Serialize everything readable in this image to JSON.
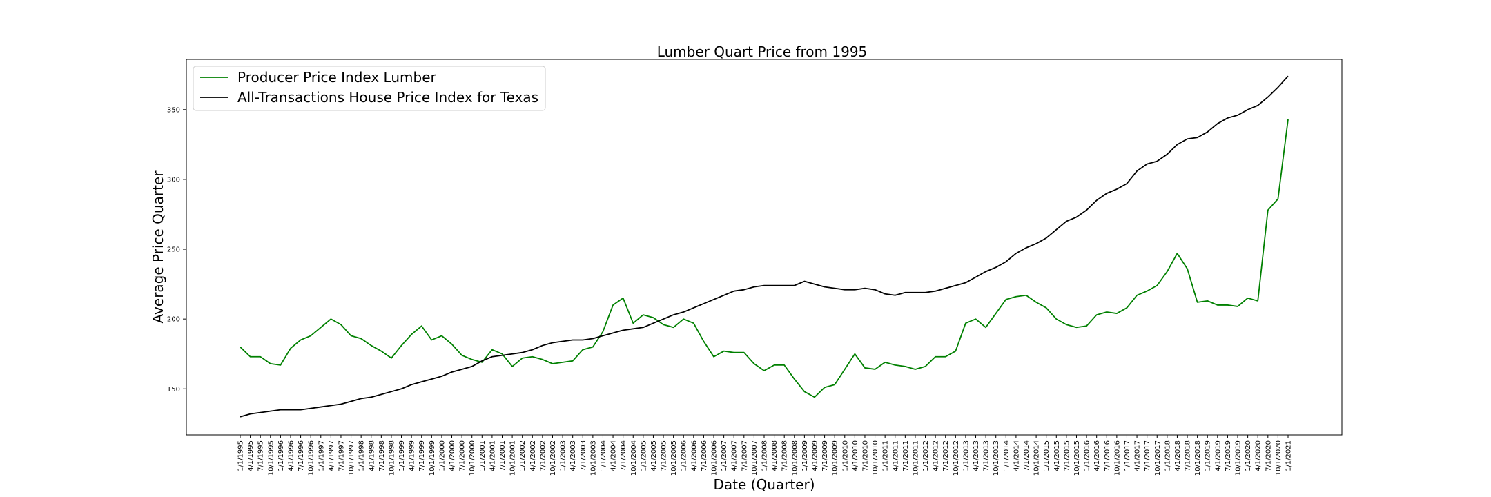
{
  "chart_data": {
    "type": "line",
    "title": "Lumber Quart Price from 1995",
    "xlabel": "Date (Quarter)",
    "ylabel": "Average Price Quarter",
    "ylim": [
      117,
      386
    ],
    "yticks": [
      150,
      200,
      250,
      300,
      350
    ],
    "grid": false,
    "legend_position": "top-left",
    "categories": [
      "1/1/1995",
      "4/1/1995",
      "7/1/1995",
      "10/1/1995",
      "1/1/1996",
      "4/1/1996",
      "7/1/1996",
      "10/1/1996",
      "1/1/1997",
      "4/1/1997",
      "7/1/1997",
      "10/1/1997",
      "1/1/1998",
      "4/1/1998",
      "7/1/1998",
      "10/1/1998",
      "1/1/1999",
      "4/1/1999",
      "7/1/1999",
      "10/1/1999",
      "1/1/2000",
      "4/1/2000",
      "7/1/2000",
      "10/1/2000",
      "1/1/2001",
      "4/1/2001",
      "7/1/2001",
      "10/1/2001",
      "1/1/2002",
      "4/1/2002",
      "7/1/2002",
      "10/1/2002",
      "1/1/2003",
      "4/1/2003",
      "7/1/2003",
      "10/1/2003",
      "1/1/2004",
      "4/1/2004",
      "7/1/2004",
      "10/1/2004",
      "1/1/2005",
      "4/1/2005",
      "7/1/2005",
      "10/1/2005",
      "1/1/2006",
      "4/1/2006",
      "7/1/2006",
      "10/1/2006",
      "1/1/2007",
      "4/1/2007",
      "7/1/2007",
      "10/1/2007",
      "1/1/2008",
      "4/1/2008",
      "7/1/2008",
      "10/1/2008",
      "1/1/2009",
      "4/1/2009",
      "7/1/2009",
      "10/1/2009",
      "1/1/2010",
      "4/1/2010",
      "7/1/2010",
      "10/1/2010",
      "1/1/2011",
      "4/1/2011",
      "7/1/2011",
      "10/1/2011",
      "1/1/2012",
      "4/1/2012",
      "7/1/2012",
      "10/1/2012",
      "1/1/2013",
      "4/1/2013",
      "7/1/2013",
      "10/1/2013",
      "1/1/2014",
      "4/1/2014",
      "7/1/2014",
      "10/1/2014",
      "1/1/2015",
      "4/1/2015",
      "7/1/2015",
      "10/1/2015",
      "1/1/2016",
      "4/1/2016",
      "7/1/2016",
      "10/1/2016",
      "1/1/2017",
      "4/1/2017",
      "7/1/2017",
      "10/1/2017",
      "1/1/2018",
      "4/1/2018",
      "7/1/2018",
      "10/1/2018",
      "1/1/2019",
      "4/1/2019",
      "7/1/2019",
      "10/1/2019",
      "1/1/2020",
      "4/1/2020",
      "7/1/2020",
      "10/1/2020",
      "1/1/2021"
    ],
    "series": [
      {
        "name": "Producer Price Index Lumber",
        "color": "#008000",
        "values": [
          180,
          173,
          173,
          168,
          167,
          179,
          185,
          188,
          194,
          200,
          196,
          188,
          186,
          181,
          177,
          172,
          181,
          189,
          195,
          185,
          188,
          182,
          174,
          171,
          169,
          178,
          175,
          166,
          172,
          173,
          171,
          168,
          169,
          170,
          178,
          180,
          191,
          210,
          215,
          197,
          203,
          201,
          196,
          194,
          200,
          197,
          184,
          173,
          177,
          176,
          176,
          168,
          163,
          167,
          167,
          157,
          148,
          144,
          151,
          153,
          164,
          175,
          165,
          164,
          169,
          167,
          166,
          164,
          166,
          173,
          173,
          177,
          197,
          200,
          194,
          204,
          214,
          216,
          217,
          212,
          208,
          200,
          196,
          194,
          195,
          203,
          205,
          204,
          208,
          217,
          220,
          224,
          234,
          247,
          236,
          212,
          213,
          210,
          210,
          209,
          215,
          213,
          278,
          286,
          343
        ]
      },
      {
        "name": "All-Transactions House Price Index for Texas",
        "color": "#000000",
        "values": [
          130,
          132,
          133,
          134,
          135,
          135,
          135,
          136,
          137,
          138,
          139,
          141,
          143,
          144,
          146,
          148,
          150,
          153,
          155,
          157,
          159,
          162,
          164,
          166,
          170,
          173,
          174,
          175,
          176,
          178,
          181,
          183,
          184,
          185,
          185,
          186,
          188,
          190,
          192,
          193,
          194,
          197,
          200,
          203,
          205,
          208,
          211,
          214,
          217,
          220,
          221,
          223,
          224,
          224,
          224,
          224,
          227,
          225,
          223,
          222,
          221,
          221,
          222,
          221,
          218,
          217,
          219,
          219,
          219,
          220,
          222,
          224,
          226,
          230,
          234,
          237,
          241,
          247,
          251,
          254,
          258,
          264,
          270,
          273,
          278,
          285,
          290,
          293,
          297,
          306,
          311,
          313,
          318,
          325,
          329,
          330,
          334,
          340,
          344,
          346,
          350,
          353,
          359,
          366,
          374
        ]
      }
    ]
  }
}
